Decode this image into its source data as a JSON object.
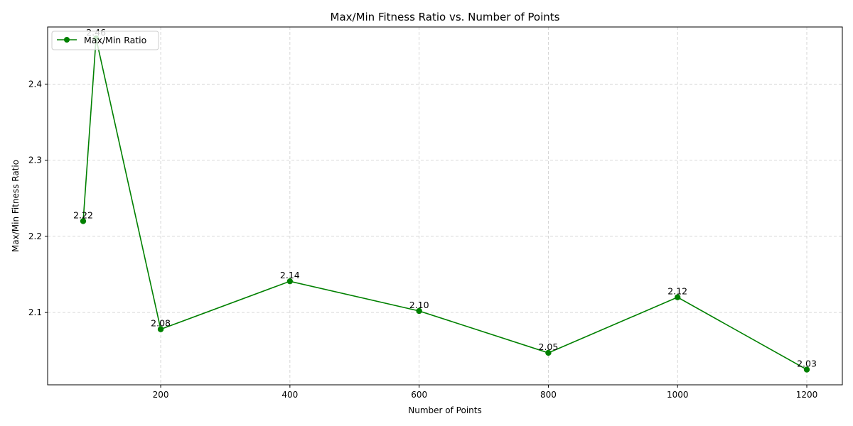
{
  "chart_data": {
    "type": "line",
    "title": "Max/Min Fitness Ratio vs. Number of Points",
    "xlabel": "Number of Points",
    "ylabel": "Max/Min Fitness Ratio",
    "xlim": [
      25,
      1255
    ],
    "ylim": [
      2.005,
      2.475
    ],
    "xticks": [
      200,
      400,
      600,
      800,
      1000,
      1200
    ],
    "yticks": [
      2.1,
      2.2,
      2.3,
      2.4
    ],
    "xtick_labels": [
      "200",
      "400",
      "600",
      "800",
      "1000",
      "1200"
    ],
    "ytick_labels": [
      "2.1",
      "2.2",
      "2.3",
      "2.4"
    ],
    "grid": true,
    "legend_position": "top-left",
    "series": [
      {
        "name": "Max/Min Ratio",
        "color": "#008000",
        "marker": "circle",
        "x": [
          80,
          100,
          200,
          400,
          600,
          800,
          1000,
          1200
        ],
        "y": [
          2.22,
          2.46,
          2.078,
          2.141,
          2.102,
          2.047,
          2.12,
          2.025
        ],
        "labels": [
          "2.22",
          "2.46",
          "2.08",
          "2.14",
          "2.10",
          "2.05",
          "2.12",
          "2.03"
        ]
      }
    ]
  }
}
